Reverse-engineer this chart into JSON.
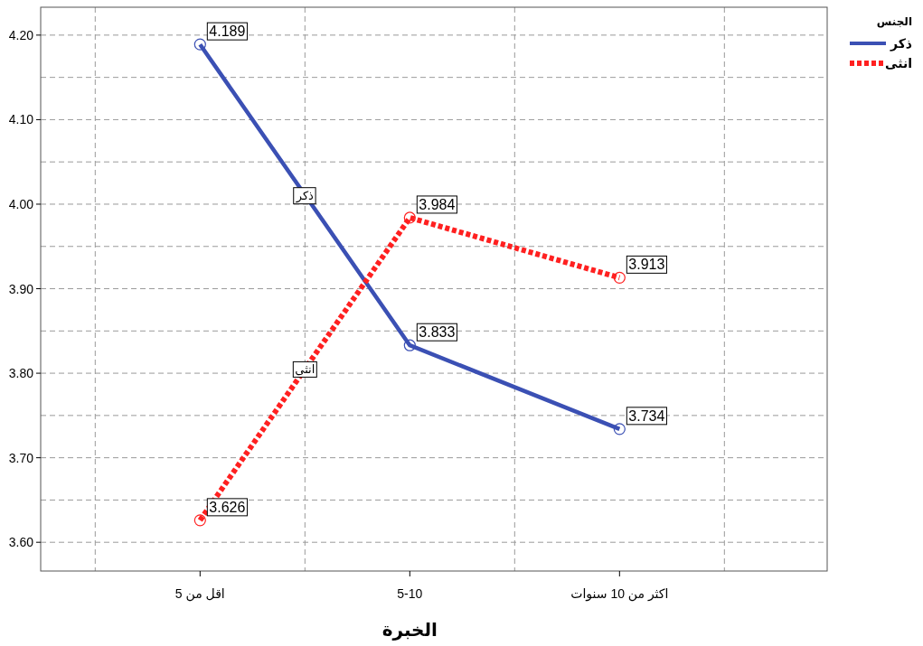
{
  "chart_data": {
    "type": "line",
    "xlabel": "الخبرة",
    "legend_title": "الجنس",
    "categories": [
      "اقل من 5",
      "5-10",
      "اكثر من 10 سنوات"
    ],
    "series": [
      {
        "name": "ذكر",
        "color": "#3b50b4",
        "values": [
          4.189,
          3.833,
          3.734
        ],
        "line_style": "solid"
      },
      {
        "name": "انثى",
        "color": "#ff2020",
        "values": [
          3.626,
          3.984,
          3.913
        ],
        "line_style": "dotted"
      }
    ],
    "ylim": [
      3.566,
      4.233
    ],
    "yticks": [
      {
        "value": 3.6,
        "label": "3.60"
      },
      {
        "value": 3.7,
        "label": "3.70"
      },
      {
        "value": 3.8,
        "label": "3.80"
      },
      {
        "value": 3.9,
        "label": "3.90"
      },
      {
        "value": 4.0,
        "label": "4.00"
      },
      {
        "value": 4.1,
        "label": "4.10"
      },
      {
        "value": 4.2,
        "label": "4.20"
      }
    ],
    "grid": true,
    "legend": "top right",
    "marker": "circle",
    "data_labels": true
  }
}
